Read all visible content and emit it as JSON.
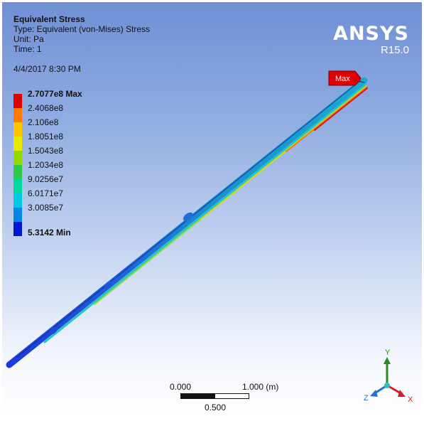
{
  "header": {
    "title": "Equivalent Stress",
    "type": "Type: Equivalent (von-Mises) Stress",
    "unit": "Unit: Pa",
    "time": "Time: 1",
    "date": "4/4/2017 8:30 PM"
  },
  "legend": {
    "items": [
      {
        "label": "2.7077e8 Max",
        "color": "#e00000",
        "bold": true
      },
      {
        "label": "2.4068e8",
        "color": "#ff7a00"
      },
      {
        "label": "2.106e8",
        "color": "#ffc400"
      },
      {
        "label": "1.8051e8",
        "color": "#e8e800"
      },
      {
        "label": "1.5043e8",
        "color": "#94d800"
      },
      {
        "label": "1.2034e8",
        "color": "#2ec84a"
      },
      {
        "label": "9.0256e7",
        "color": "#00d8a0"
      },
      {
        "label": "6.0171e7",
        "color": "#00c8e0"
      },
      {
        "label": "3.0085e7",
        "color": "#0088e8"
      },
      {
        "label": "5.3142 Min",
        "color": "#0018d0",
        "bold": true
      }
    ]
  },
  "brand": {
    "name": "ANSYS",
    "version": "R15.0"
  },
  "probe": {
    "label": "Max",
    "color": "#e00000"
  },
  "scale": {
    "left": "0.000",
    "right": "1.000 (m)",
    "middle": "0.500"
  },
  "triad": {
    "x": "X",
    "y": "Y",
    "z": "Z",
    "x_color": "#d81c2a",
    "y_color": "#2a8a1e",
    "z_color": "#2a6fc8",
    "origin_color": "#2ec0c0"
  }
}
